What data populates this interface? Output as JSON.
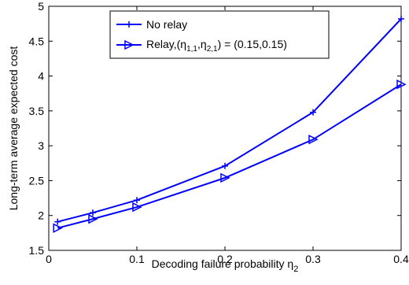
{
  "chart_data": {
    "type": "line",
    "xlabel": "Decoding failure probability η",
    "xlabel_sub": "2",
    "ylabel": "Long-term average expected cost",
    "xlim": [
      0,
      0.4
    ],
    "ylim": [
      1.5,
      5
    ],
    "xticks": [
      0,
      0.1,
      0.2,
      0.3,
      0.4
    ],
    "xtick_labels": [
      "0",
      "0.1",
      "0.2",
      "0.3",
      "0.4"
    ],
    "yticks": [
      1.5,
      2,
      2.5,
      3,
      3.5,
      4,
      4.5,
      5
    ],
    "ytick_labels": [
      "1.5",
      "2",
      "2.5",
      "3",
      "3.5",
      "4",
      "4.5",
      "5"
    ],
    "grid": false,
    "legend_position": "top-center",
    "x": [
      0.01,
      0.05,
      0.1,
      0.2,
      0.3,
      0.4
    ],
    "series": [
      {
        "name": "No relay",
        "marker": "plus",
        "color": "#0000ff",
        "values": [
          1.91,
          2.04,
          2.22,
          2.71,
          3.48,
          4.82
        ]
      },
      {
        "name_parts": [
          "Relay,(η",
          "1,1",
          ",η",
          "2,1",
          ") = (0.15,0.15)"
        ],
        "marker": "triangle-right",
        "color": "#0000ff",
        "values": [
          1.82,
          1.95,
          2.12,
          2.54,
          3.09,
          3.88
        ]
      }
    ]
  }
}
